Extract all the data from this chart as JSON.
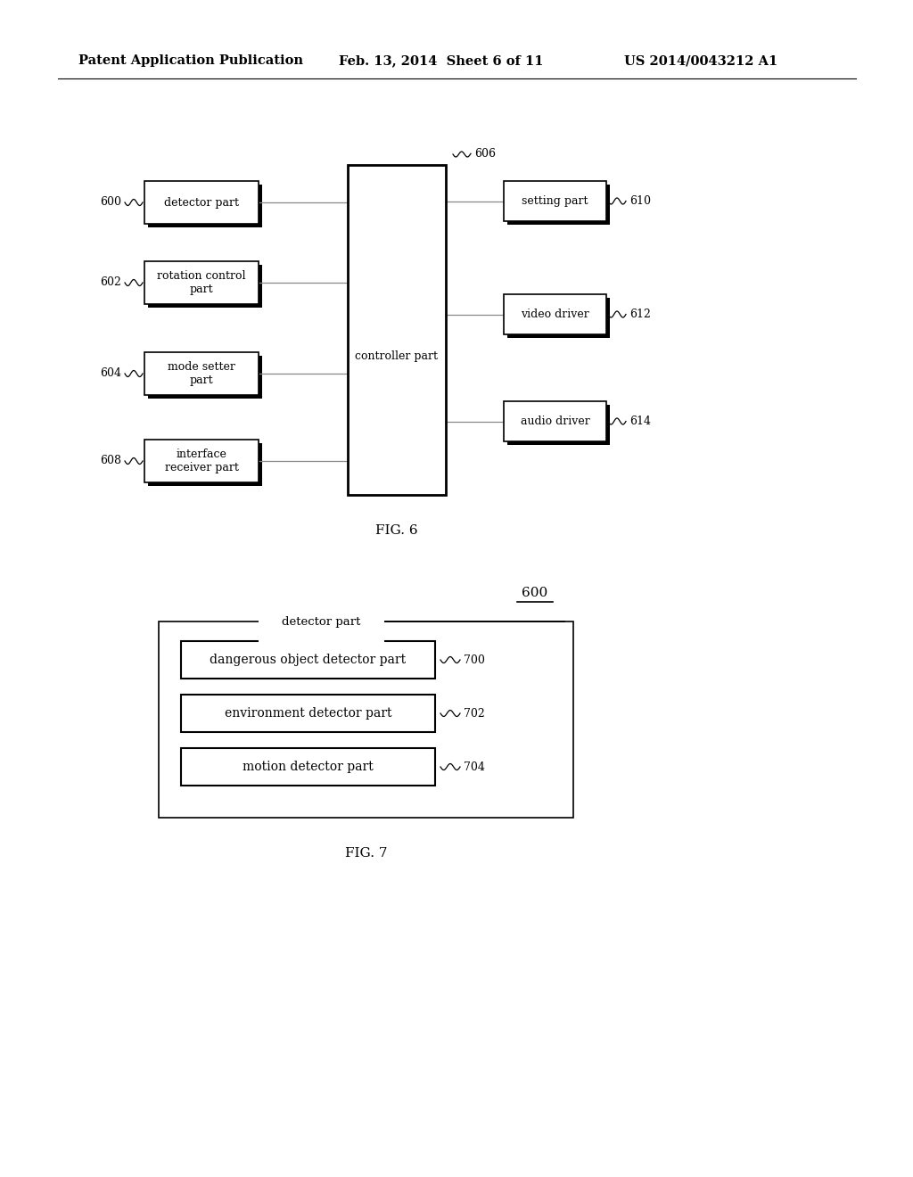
{
  "bg_color": "#ffffff",
  "header_left": "Patent Application Publication",
  "header_mid": "Feb. 13, 2014  Sheet 6 of 11",
  "header_right": "US 2014/0043212 A1",
  "fig6_label": "FIG. 6",
  "fig7_label": "FIG. 7",
  "fig6": {
    "controller_label": "controller part",
    "controller_ref": "606",
    "left_boxes": [
      {
        "label": "detector part",
        "ref": "600"
      },
      {
        "label": "rotation control\npart",
        "ref": "602"
      },
      {
        "label": "mode setter\npart",
        "ref": "604"
      },
      {
        "label": "interface\nreceiver part",
        "ref": "608"
      }
    ],
    "right_boxes": [
      {
        "label": "setting part",
        "ref": "610"
      },
      {
        "label": "video driver",
        "ref": "612"
      },
      {
        "label": "audio driver",
        "ref": "614"
      }
    ]
  },
  "fig7": {
    "outer_label": "detector part",
    "outer_ref": "600",
    "inner_boxes": [
      {
        "label": "dangerous object detector part",
        "ref": "700"
      },
      {
        "label": "environment detector part",
        "ref": "702"
      },
      {
        "label": "motion detector part",
        "ref": "704"
      }
    ]
  }
}
